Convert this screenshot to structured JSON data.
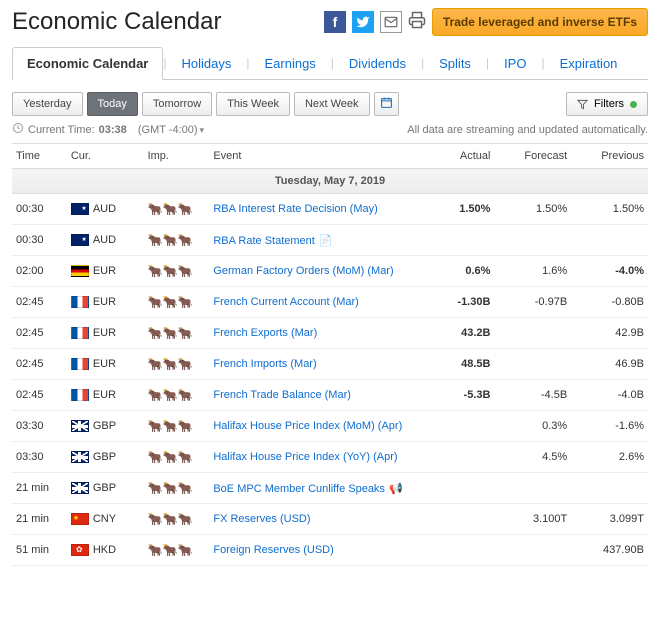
{
  "header": {
    "title": "Economic Calendar",
    "cta": "Trade leveraged and inverse ETFs"
  },
  "tabs": [
    "Economic Calendar",
    "Holidays",
    "Earnings",
    "Dividends",
    "Splits",
    "IPO",
    "Expiration"
  ],
  "activeTab": 0,
  "ranges": [
    "Yesterday",
    "Today",
    "Tomorrow",
    "This Week",
    "Next Week"
  ],
  "activeRange": 1,
  "filtersLabel": "Filters",
  "status": {
    "timeLabel": "Current Time:",
    "time": "03:38",
    "tz": "(GMT -4:00)",
    "streamNote": "All data are streaming and updated automatically."
  },
  "columns": [
    "Time",
    "Cur.",
    "Imp.",
    "Event",
    "Actual",
    "Forecast",
    "Previous"
  ],
  "dateHeader": "Tuesday, May 7, 2019",
  "rows": [
    {
      "time": "00:30",
      "flag": "aud",
      "cur": "AUD",
      "imp": 3,
      "event": "RBA Interest Rate Decision (May)",
      "actual": "1.50%",
      "actualClass": "bold",
      "forecast": "1.50%",
      "previous": "1.50%"
    },
    {
      "time": "00:30",
      "flag": "aud",
      "cur": "AUD",
      "imp": 3,
      "event": "RBA Rate Statement",
      "doc": true,
      "actual": "",
      "forecast": "",
      "previous": ""
    },
    {
      "time": "02:00",
      "flag": "eur-de",
      "cur": "EUR",
      "imp": 2,
      "event": "German Factory Orders (MoM) (Mar)",
      "actual": "0.6%",
      "actualClass": "red",
      "forecast": "1.6%",
      "previous": "-4.0%",
      "previousClass": "green"
    },
    {
      "time": "02:45",
      "flag": "eur-fr",
      "cur": "EUR",
      "imp": 1,
      "event": "French Current Account (Mar)",
      "actual": "-1.30B",
      "actualClass": "red",
      "forecast": "-0.97B",
      "previous": "-0.80B"
    },
    {
      "time": "02:45",
      "flag": "eur-fr",
      "cur": "EUR",
      "imp": 1,
      "event": "French Exports (Mar)",
      "actual": "43.2B",
      "actualClass": "bold",
      "forecast": "",
      "previous": "42.9B"
    },
    {
      "time": "02:45",
      "flag": "eur-fr",
      "cur": "EUR",
      "imp": 1,
      "event": "French Imports (Mar)",
      "actual": "48.5B",
      "actualClass": "bold",
      "forecast": "",
      "previous": "46.9B"
    },
    {
      "time": "02:45",
      "flag": "eur-fr",
      "cur": "EUR",
      "imp": 1,
      "event": "French Trade Balance (Mar)",
      "actual": "-5.3B",
      "actualClass": "red",
      "forecast": "-4.5B",
      "previous": "-4.0B"
    },
    {
      "time": "03:30",
      "flag": "gbp",
      "cur": "GBP",
      "imp": 2,
      "event": "Halifax House Price Index (MoM) (Apr)",
      "actual": "",
      "forecast": "0.3%",
      "previous": "-1.6%"
    },
    {
      "time": "03:30",
      "flag": "gbp",
      "cur": "GBP",
      "imp": 2,
      "event": "Halifax House Price Index (YoY) (Apr)",
      "actual": "",
      "forecast": "4.5%",
      "previous": "2.6%"
    },
    {
      "time": "21 min",
      "flag": "gbp",
      "cur": "GBP",
      "imp": 2,
      "event": "BoE MPC Member Cunliffe Speaks",
      "speak": true,
      "actual": "",
      "forecast": "",
      "previous": ""
    },
    {
      "time": "21 min",
      "flag": "cny",
      "cur": "CNY",
      "imp": 1,
      "event": "FX Reserves (USD)",
      "actual": "",
      "forecast": "3.100T",
      "previous": "3.099T"
    },
    {
      "time": "51 min",
      "flag": "hkd",
      "cur": "HKD",
      "imp": 1,
      "event": "Foreign Reserves (USD)",
      "actual": "",
      "forecast": "",
      "previous": "437.90B"
    }
  ]
}
